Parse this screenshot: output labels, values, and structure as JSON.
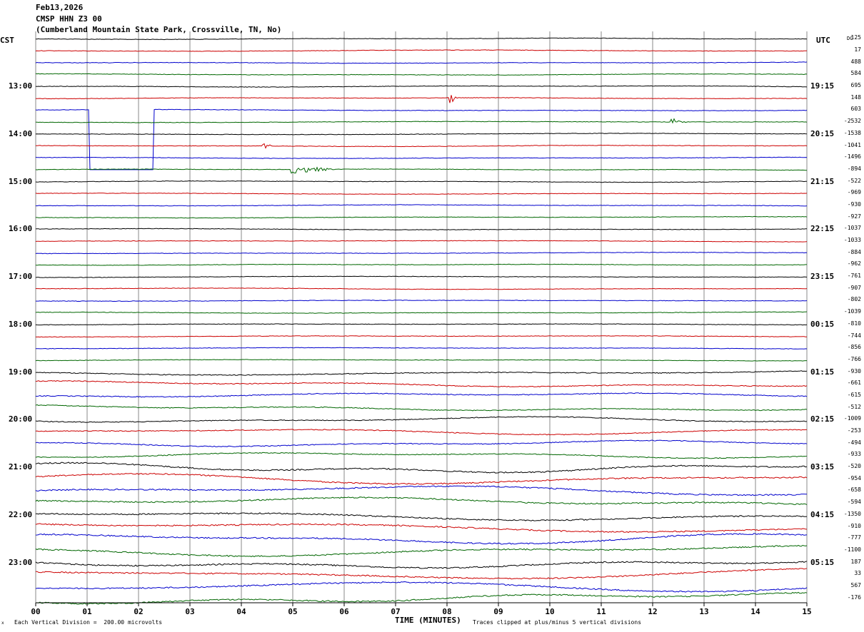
{
  "header": {
    "date": "Feb13,2026",
    "station": "CMSP HHN Z3 00",
    "location": "(Cumberland Mountain State Park, Crossville, TN, No)"
  },
  "left_zone_label": "CST",
  "right_zone_label": "UTC",
  "dc_label": "DC",
  "footer": {
    "scale_note": "Each Vertical Division =  200.00 microvolts",
    "clip_note": "Traces clipped at plus/minus 5 vertical divisions",
    "x_title": "TIME (MINUTES)",
    "corner_mark": "x"
  },
  "colors": {
    "trace_cycle": [
      "#000000",
      "#cc0000",
      "#0000cc",
      "#006600"
    ],
    "grid": "#888888"
  },
  "chart_data": {
    "type": "line",
    "title": "",
    "xlabel": "TIME (MINUTES)",
    "ylabel": "",
    "xlim": [
      0,
      15
    ],
    "x_ticks": [
      "00",
      "01",
      "02",
      "03",
      "04",
      "05",
      "06",
      "07",
      "08",
      "09",
      "10",
      "11",
      "12",
      "13",
      "14",
      "15"
    ],
    "row_count": 48,
    "row_minutes": 15,
    "left_time_labels": [
      "13:00",
      "14:00",
      "15:00",
      "16:00",
      "17:00",
      "18:00",
      "19:00",
      "20:00",
      "21:00",
      "22:00",
      "23:00"
    ],
    "right_time_labels": [
      "19:15",
      "20:15",
      "21:15",
      "22:15",
      "23:15",
      "00:15",
      "01:15",
      "02:15",
      "03:15",
      "04:15",
      "05:15"
    ],
    "time_label_start_row": 4,
    "time_label_row_step": 4,
    "dc_offsets": [
      "125",
      "17",
      "488",
      "584",
      "695",
      "148",
      "603",
      "-2532",
      "-1538",
      "-1041",
      "-1496",
      "-894",
      "-522",
      "-969",
      "-930",
      "-927",
      "-1037",
      "-1033",
      "-884",
      "-962",
      "-761",
      "-907",
      "-802",
      "-1039",
      "-810",
      "-744",
      "-856",
      "-766",
      "-930",
      "-661",
      "-615",
      "-512",
      "-1009",
      "-253",
      "-494",
      "-933",
      "-520",
      "-954",
      "-658",
      "-594",
      "-1350",
      "-910",
      "-777",
      "-1100",
      "187",
      "33",
      "567",
      "-176"
    ],
    "noise_rows": [
      {
        "from": 0,
        "to": 27,
        "noise": 0.35,
        "wave": 0.3
      },
      {
        "from": 28,
        "to": 35,
        "noise": 0.6,
        "wave": 1.4
      },
      {
        "from": 36,
        "to": 47,
        "noise": 0.9,
        "wave": 2.6
      }
    ],
    "events": [
      {
        "row": 5,
        "minute": 8.05,
        "duration": 0.15,
        "amplitude": 10
      },
      {
        "row": 9,
        "minute": 4.4,
        "duration": 0.25,
        "amplitude": 4
      },
      {
        "row": 11,
        "minute": 4.95,
        "duration": 1.0,
        "amplitude": 6
      },
      {
        "row": 7,
        "minute": 12.35,
        "duration": 0.4,
        "amplitude": 6
      }
    ],
    "clipped_trace": {
      "row": 6,
      "start_minute": 1.05,
      "end_minute": 2.3,
      "drop_to_row": 11
    }
  }
}
